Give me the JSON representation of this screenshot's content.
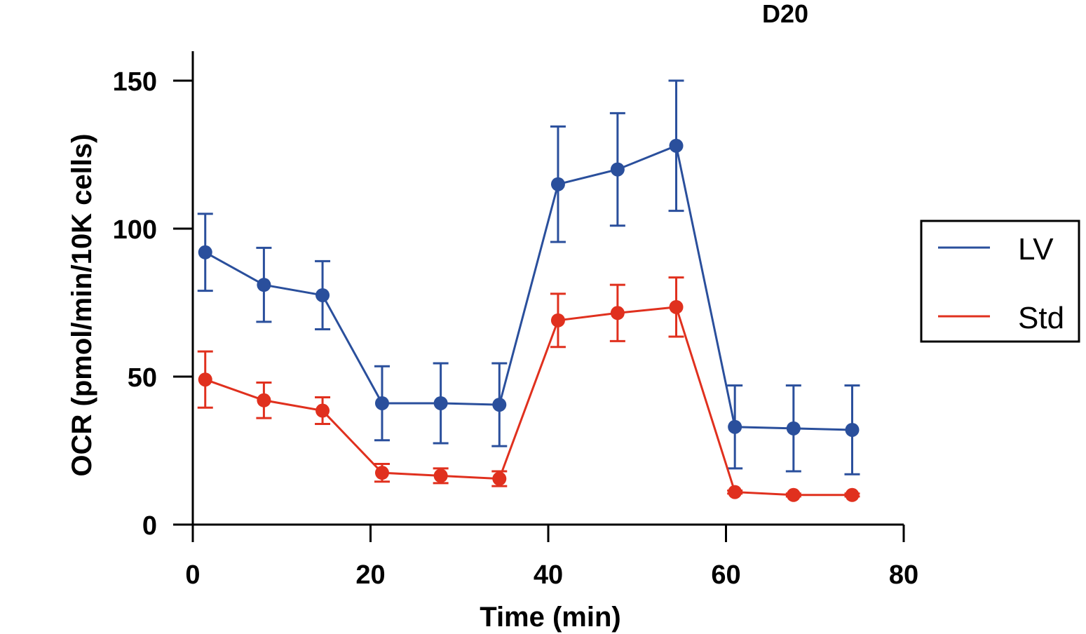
{
  "chart_data": {
    "type": "line",
    "title": "D20",
    "xlabel": "Time (min)",
    "ylabel": "OCR (pmol/min/10K cells)",
    "xlim": [
      0,
      80
    ],
    "ylim": [
      0,
      160
    ],
    "xticks": [
      0,
      20,
      40,
      60,
      80
    ],
    "yticks": [
      0,
      50,
      100,
      150
    ],
    "xtick_labels": [
      "0",
      "20",
      "40",
      "60",
      "80"
    ],
    "ytick_labels": [
      "0",
      "50",
      "100",
      "150"
    ],
    "grid": false,
    "legend_position": "right",
    "x": [
      1.4,
      8.0,
      14.6,
      21.3,
      27.9,
      34.5,
      41.1,
      47.8,
      54.4,
      61.0,
      67.6,
      74.2
    ],
    "series": [
      {
        "name": "LV",
        "color": "#2a4f9c",
        "values": [
          92,
          81,
          77.5,
          41,
          41,
          40.5,
          115,
          120,
          128,
          33,
          32.5,
          32
        ],
        "errors": [
          13,
          12.5,
          11.5,
          12.5,
          13.5,
          14,
          19.5,
          19,
          22,
          14,
          14.5,
          15
        ]
      },
      {
        "name": "Std",
        "color": "#e0301e",
        "values": [
          49,
          42,
          38.5,
          17.5,
          16.5,
          15.5,
          69,
          71.5,
          73.5,
          11,
          10,
          10
        ],
        "errors": [
          9.5,
          6,
          4.5,
          3,
          2.5,
          2.5,
          9,
          9.5,
          10,
          0.5,
          0.5,
          0.5
        ]
      }
    ]
  }
}
